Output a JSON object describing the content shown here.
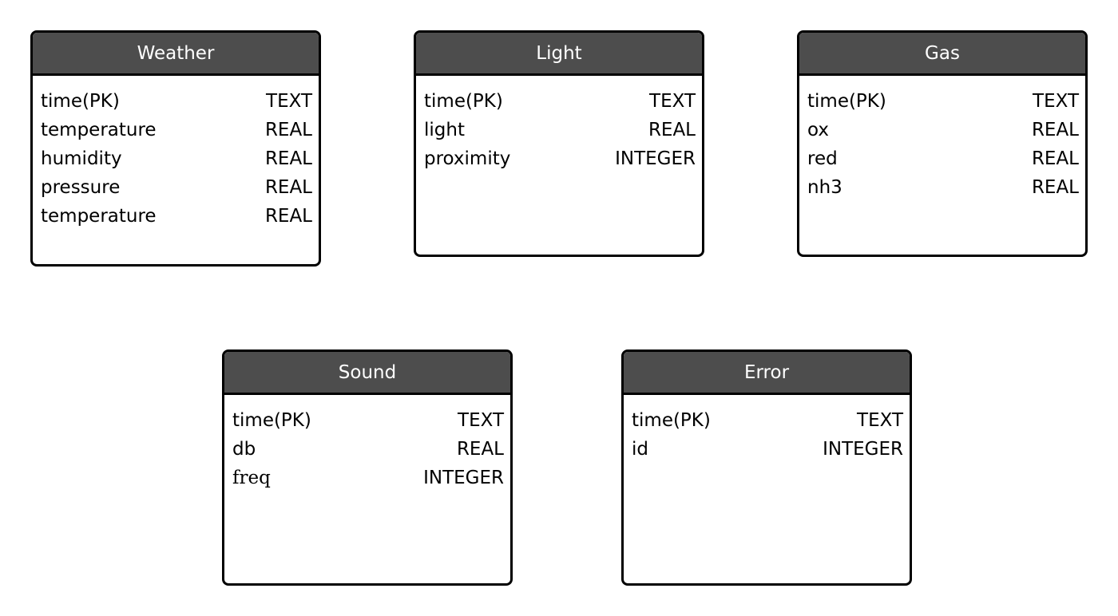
{
  "tables": {
    "weather": {
      "title": "Weather",
      "fields": [
        {
          "name": "time(PK)",
          "type": "TEXT"
        },
        {
          "name": "temperature",
          "type": "REAL"
        },
        {
          "name": "humidity",
          "type": "REAL"
        },
        {
          "name": "pressure",
          "type": "REAL"
        },
        {
          "name": "temperature",
          "type": "REAL"
        }
      ]
    },
    "light": {
      "title": "Light",
      "fields": [
        {
          "name": "time(PK)",
          "type": "TEXT"
        },
        {
          "name": "light",
          "type": "REAL"
        },
        {
          "name": "proximity",
          "type": "INTEGER"
        }
      ]
    },
    "gas": {
      "title": "Gas",
      "fields": [
        {
          "name": "time(PK)",
          "type": "TEXT"
        },
        {
          "name": "ox",
          "type": "REAL"
        },
        {
          "name": "red",
          "type": "REAL"
        },
        {
          "name": "nh3",
          "type": "REAL"
        }
      ]
    },
    "sound": {
      "title": "Sound",
      "fields": [
        {
          "name": "time(PK)",
          "type": "TEXT"
        },
        {
          "name": "db",
          "type": "REAL"
        },
        {
          "name": "freq",
          "type": "INTEGER"
        }
      ]
    },
    "error": {
      "title": "Error",
      "fields": [
        {
          "name": "time(PK)",
          "type": "TEXT"
        },
        {
          "name": "id",
          "type": "INTEGER"
        }
      ]
    }
  },
  "colors": {
    "header_fill": "#4d4d4d",
    "header_text": "#ffffff",
    "border": "#000000",
    "body_fill": "#ffffff"
  }
}
